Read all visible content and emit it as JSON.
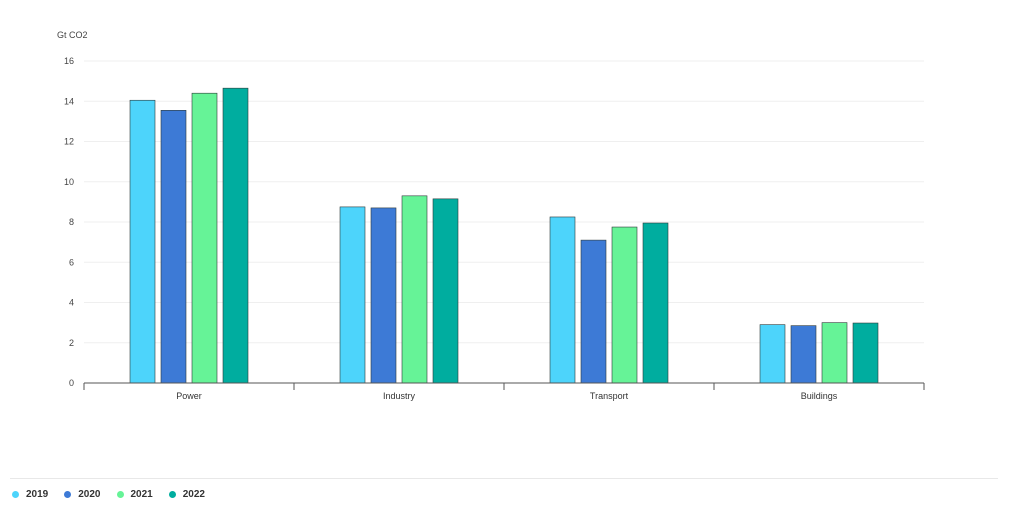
{
  "chart_data": {
    "type": "bar",
    "title": "",
    "ylabel": "Gt CO2",
    "xlabel": "",
    "ylim": [
      0,
      16
    ],
    "yticks": [
      0,
      2,
      4,
      6,
      8,
      10,
      12,
      14,
      16
    ],
    "grid": true,
    "legend_position": "bottom-left",
    "categories": [
      "Power",
      "Industry",
      "Transport",
      "Buildings"
    ],
    "series": [
      {
        "name": "2019",
        "color": "#4dd4fb",
        "values": [
          14.05,
          8.75,
          8.25,
          2.9
        ]
      },
      {
        "name": "2020",
        "color": "#3d7ad6",
        "values": [
          13.55,
          8.7,
          7.1,
          2.85
        ]
      },
      {
        "name": "2021",
        "color": "#66f397",
        "values": [
          14.4,
          9.3,
          7.75,
          3.0
        ]
      },
      {
        "name": "2022",
        "color": "#00ad9f",
        "values": [
          14.65,
          9.15,
          7.95,
          2.98
        ]
      }
    ]
  }
}
